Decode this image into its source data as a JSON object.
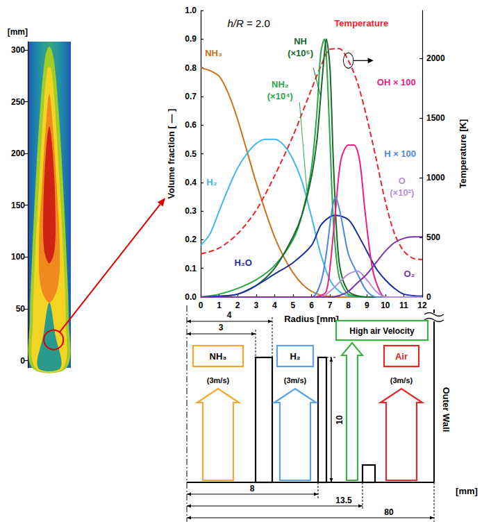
{
  "flame_image": {
    "y_label": "[mm]",
    "ylim": [
      -7,
      308
    ],
    "yticks": [
      0,
      50,
      100,
      150,
      200,
      250,
      300
    ]
  },
  "chart_data": {
    "type": "line",
    "annotation": "h/R = 2.0",
    "xlabel": "Radius [mm]",
    "ylabel": "Volume fraction [ — ]",
    "y2label": "Temperature [K]",
    "xlim": [
      0,
      12
    ],
    "xticks": [
      0,
      1,
      2,
      3,
      4,
      5,
      6,
      7,
      8,
      9,
      10,
      11,
      12
    ],
    "ylim": [
      0,
      1
    ],
    "yticks": [
      {
        "value": 0,
        "label": "0.0"
      },
      0.1,
      0.2,
      0.3,
      0.4,
      0.5,
      0.6,
      0.7,
      0.8,
      0.9,
      {
        "value": 1,
        "label": "1.0"
      }
    ],
    "y2lim": [
      0,
      2400
    ],
    "y2ticks": [
      0,
      500,
      1000,
      1500,
      2000
    ],
    "grid": false,
    "series": [
      {
        "name": "NH₃",
        "color": "#c9731b",
        "line_style": "solid",
        "x": [
          0,
          0.5,
          1,
          1.5,
          2,
          2.5,
          3,
          3.5,
          4,
          4.5,
          5,
          5.5,
          6,
          6.5,
          7,
          7.5,
          8,
          9,
          10,
          11,
          12
        ],
        "values": [
          0.8,
          0.79,
          0.77,
          0.71,
          0.62,
          0.51,
          0.4,
          0.3,
          0.21,
          0.14,
          0.085,
          0.045,
          0.02,
          0.007,
          0.002,
          0,
          0,
          0,
          0,
          0,
          0
        ]
      },
      {
        "name": "H₂",
        "color": "#3db8e8",
        "line_style": "solid",
        "x": [
          0,
          0.5,
          1,
          1.5,
          2,
          2.5,
          3,
          3.5,
          4,
          4.5,
          5,
          5.5,
          6,
          6.5,
          7,
          7.5,
          8,
          9,
          10,
          11,
          12
        ],
        "values": [
          0.18,
          0.22,
          0.3,
          0.38,
          0.45,
          0.5,
          0.535,
          0.55,
          0.55,
          0.53,
          0.48,
          0.4,
          0.28,
          0.15,
          0.06,
          0.02,
          0.005,
          0,
          0,
          0,
          0
        ]
      },
      {
        "name": "Temperature",
        "color": "#e8262a",
        "line_style": "dashed",
        "axis": "y2",
        "x": [
          0,
          1,
          2,
          3,
          4,
          5,
          6,
          6.5,
          7,
          7.5,
          8,
          8.5,
          9,
          9.5,
          10,
          10.5,
          11,
          11.5,
          12
        ],
        "values": [
          360,
          410,
          530,
          725,
          1015,
          1350,
          1740,
          1930,
          2075,
          2080,
          1980,
          1790,
          1500,
          1160,
          800,
          530,
          385,
          325,
          315
        ]
      },
      {
        "name": "NH₂ (×10⁴)",
        "color": "#27a844",
        "line_style": "solid",
        "x": [
          0,
          1,
          2,
          3,
          4,
          5,
          5.5,
          6,
          6.3,
          6.5,
          6.7,
          6.8,
          7,
          7.2,
          7.5,
          8,
          9,
          10,
          12
        ],
        "values": [
          0,
          0.01,
          0.03,
          0.06,
          0.11,
          0.2,
          0.29,
          0.45,
          0.65,
          0.85,
          0.9,
          0.85,
          0.55,
          0.25,
          0.07,
          0.01,
          0,
          0,
          0
        ]
      },
      {
        "name": "NH (×10⁵)",
        "color": "#19672a",
        "line_style": "solid",
        "x": [
          0,
          1,
          2,
          3,
          4,
          5,
          5.5,
          6,
          6.3,
          6.5,
          6.7,
          6.8,
          7,
          7.2,
          7.5,
          8,
          9,
          10,
          12
        ],
        "values": [
          0,
          0.003,
          0.01,
          0.04,
          0.1,
          0.21,
          0.29,
          0.42,
          0.55,
          0.7,
          0.85,
          0.9,
          0.8,
          0.45,
          0.12,
          0.02,
          0,
          0,
          0
        ]
      },
      {
        "name": "H₂O",
        "color": "#1a2ea0",
        "line_style": "solid",
        "x": [
          0,
          1,
          2,
          3,
          4,
          5,
          6,
          6.5,
          7,
          7.3,
          8,
          8.5,
          9,
          9.5,
          10,
          10.5,
          11,
          12
        ],
        "values": [
          0,
          0.003,
          0.01,
          0.04,
          0.08,
          0.12,
          0.18,
          0.25,
          0.28,
          0.285,
          0.27,
          0.22,
          0.16,
          0.1,
          0.06,
          0.03,
          0.01,
          0.003
        ]
      },
      {
        "name": "OH × 100",
        "color": "#ec1e83",
        "line_style": "solid",
        "x": [
          0,
          6,
          6.5,
          6.8,
          7,
          7.3,
          7.6,
          8,
          8.3,
          8.6,
          8.9,
          9.3,
          9.7,
          10,
          12
        ],
        "values": [
          0,
          0,
          0.005,
          0.02,
          0.1,
          0.3,
          0.48,
          0.53,
          0.53,
          0.48,
          0.3,
          0.1,
          0.02,
          0,
          0
        ]
      },
      {
        "name": "H × 100",
        "color": "#4f86e0",
        "line_style": "solid",
        "x": [
          0,
          6,
          6.5,
          6.8,
          7.1,
          7.3,
          7.6,
          8,
          8.5,
          9,
          9.5,
          10,
          12
        ],
        "values": [
          0,
          0,
          0.05,
          0.15,
          0.3,
          0.35,
          0.28,
          0.15,
          0.08,
          0.02,
          0,
          0,
          0
        ]
      },
      {
        "name": "O (×10²)",
        "color": "#b58fd8",
        "line_style": "solid",
        "x": [
          0,
          6.5,
          7,
          7.5,
          8,
          8.5,
          9,
          9.5,
          10,
          12
        ],
        "values": [
          0,
          0,
          0.02,
          0.05,
          0.08,
          0.09,
          0.06,
          0.02,
          0,
          0
        ]
      },
      {
        "name": "O₂",
        "color": "#7a32a8",
        "line_style": "solid",
        "x": [
          0,
          7,
          7.5,
          8,
          8.5,
          9,
          9.5,
          10,
          10.5,
          11,
          11.5,
          12
        ],
        "values": [
          0,
          0,
          0.005,
          0.02,
          0.05,
          0.08,
          0.12,
          0.16,
          0.19,
          0.205,
          0.21,
          0.21
        ]
      }
    ]
  },
  "schematic": {
    "streams": [
      {
        "label": "NH₃",
        "velocity": "(3m/s)",
        "color": "#f0a830",
        "label_color": "#000000"
      },
      {
        "label": "H₂",
        "velocity": "(3m/s)",
        "color": "#5aa0e6",
        "label_color": "#000000"
      },
      {
        "label": "High air Velocity",
        "color": "#3cb043",
        "label_color": "#000000"
      },
      {
        "label": "Air",
        "velocity": "(3m/s)",
        "color": "#e02828",
        "label_color": "#e02828"
      }
    ],
    "wall_label": "Outer Wall",
    "units": "[mm]",
    "dimensions": {
      "nh3_outer_radius": 4,
      "nh3_inner_radius": 3,
      "nozzle_height": 10,
      "h2_outer_radius": 8,
      "high_air_outer_radius": 13.5,
      "outer_wall_radius": 80
    }
  }
}
